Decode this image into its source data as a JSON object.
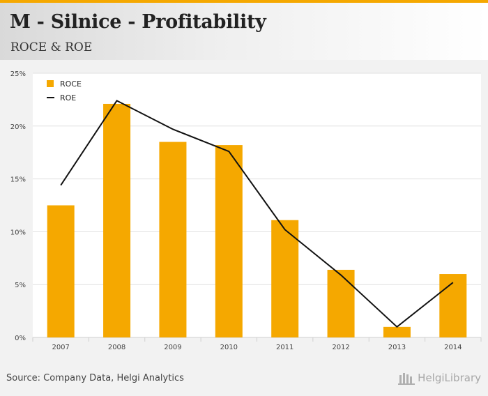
{
  "header": {
    "title": "M - Silnice - Profitability",
    "subtitle": "ROCE & ROE"
  },
  "footer": {
    "source": "Source: Company Data, Helgi Analytics",
    "brand": "HelgiLibrary"
  },
  "colors": {
    "accent": "#f5a800",
    "bar": "#f5a800",
    "line": "#111111",
    "grid": "#e0e0e0"
  },
  "chart_data": {
    "type": "bar",
    "categories": [
      "2007",
      "2008",
      "2009",
      "2010",
      "2011",
      "2012",
      "2013",
      "2014"
    ],
    "series": [
      {
        "name": "ROCE",
        "type": "bar",
        "values": [
          12.5,
          22.1,
          18.5,
          18.2,
          11.1,
          6.4,
          1.0,
          6.0
        ]
      },
      {
        "name": "ROE",
        "type": "line",
        "values": [
          14.4,
          22.4,
          19.7,
          17.6,
          10.2,
          5.9,
          1.0,
          5.2
        ]
      }
    ],
    "yticks": [
      "0%",
      "5%",
      "10%",
      "15%",
      "20%",
      "25%"
    ],
    "ylim": [
      0,
      25
    ],
    "grid": true,
    "legend": "top-left"
  }
}
